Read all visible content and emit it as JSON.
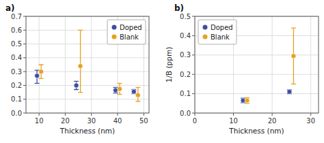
{
  "chart_data": [
    {
      "type": "scatter",
      "title": "a)",
      "x_label": "Thickness (nm)",
      "xlim": [
        5,
        52
      ],
      "xticks": [
        10,
        20,
        30,
        40,
        50
      ],
      "ylim": [
        0,
        0.7
      ],
      "yticks": [
        {
          "value": 0,
          "label": "0.0"
        },
        0.1,
        0.2,
        0.3,
        0.4,
        0.5,
        0.6,
        0.7
      ],
      "grid": true,
      "legend": "upper right",
      "x": [
        10,
        25,
        40,
        47
      ],
      "series": [
        {
          "name": "Doped",
          "color": "#3a4fa0",
          "marker": "circle",
          "values": [
            0.27,
            0.2,
            0.165,
            0.155
          ],
          "error_low": [
            0.055,
            0.03,
            0.02,
            0.015
          ],
          "error_high": [
            0.04,
            0.03,
            0.02,
            0.015
          ]
        },
        {
          "name": "Blank",
          "color": "#e8a020",
          "marker": "circle",
          "values": [
            0.3,
            0.34,
            0.175,
            0.13
          ],
          "error_low": [
            0.05,
            0.19,
            0.04,
            0.045
          ],
          "error_high": [
            0.05,
            0.26,
            0.04,
            0.055
          ]
        }
      ]
    },
    {
      "type": "scatter",
      "title": "b)",
      "x_label": "Thickness (nm)",
      "y_label": "1/B (ppm)",
      "xlim": [
        0,
        32
      ],
      "xticks": [
        0,
        10,
        20,
        30
      ],
      "ylim": [
        0,
        0.5
      ],
      "yticks": [
        {
          "value": 0,
          "label": "0.0"
        },
        0.1,
        0.2,
        0.3,
        0.4,
        0.5
      ],
      "grid": true,
      "legend": "upper left",
      "x": [
        13,
        25
      ],
      "series": [
        {
          "name": "Doped",
          "color": "#3a4fa0",
          "marker": "circle",
          "values": [
            0.065,
            0.11
          ],
          "error_low": [
            0.012,
            0.01
          ],
          "error_high": [
            0.012,
            0.01
          ]
        },
        {
          "name": "Blank",
          "color": "#e8a020",
          "marker": "circle",
          "values": [
            0.065,
            0.295
          ],
          "error_low": [
            0.015,
            0.145
          ],
          "error_high": [
            0.015,
            0.145
          ]
        }
      ]
    }
  ]
}
